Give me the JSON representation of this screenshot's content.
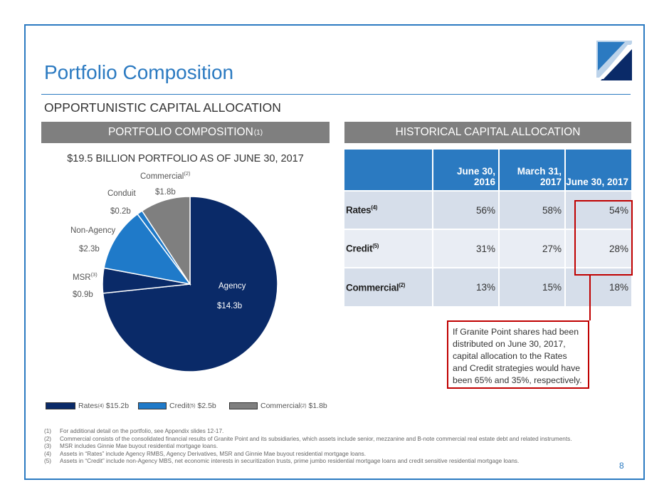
{
  "page": {
    "title": "Portfolio Composition",
    "subtitle": "OPPORTUNISTIC CAPITAL ALLOCATION",
    "page_number": "8"
  },
  "sections": {
    "left": {
      "title": "PORTFOLIO COMPOSITION",
      "sup": "(1)"
    },
    "right": {
      "title": "HISTORICAL CAPITAL ALLOCATION"
    }
  },
  "pie": {
    "heading": "$19.5 BILLION PORTFOLIO AS OF JUNE 30, 2017",
    "slice_labels": [
      {
        "name": "Agency",
        "sup": "",
        "value": "$14.3b"
      },
      {
        "name": "MSR",
        "sup": "(3)",
        "value": "$0.9b"
      },
      {
        "name": "Non-Agency",
        "sup": "",
        "value": "$2.3b"
      },
      {
        "name": "Conduit",
        "sup": "",
        "value": "$0.2b"
      },
      {
        "name": "Commercial",
        "sup": "(2)",
        "value": "$1.8b"
      }
    ],
    "legend": [
      {
        "name": "Rates",
        "sup": "(4)",
        "value": "$15.2b",
        "color": "#0A2A68"
      },
      {
        "name": "Credit",
        "sup": "(5)",
        "value": "$2.5b",
        "color": "#1F7AC9"
      },
      {
        "name": "Commercial",
        "sup": "(2)",
        "value": "$1.8b",
        "color": "#7F7F7F"
      }
    ]
  },
  "chart_data": {
    "type": "pie",
    "slices": [
      {
        "label": "Agency",
        "value": 14.3,
        "color": "#0A2A68"
      },
      {
        "label": "MSR",
        "value": 0.9,
        "color": "#0A2A68"
      },
      {
        "label": "Non-Agency",
        "value": 2.3,
        "color": "#1F7AC9"
      },
      {
        "label": "Conduit",
        "value": 0.2,
        "color": "#1F7AC9"
      },
      {
        "label": "Commercial",
        "value": 1.8,
        "color": "#7F7F7F"
      }
    ],
    "title": "$19.5 BILLION PORTFOLIO AS OF JUNE 30, 2017"
  },
  "table": {
    "columns": [
      "June 30, 2016",
      "March 31, 2017",
      "June 30, 2017"
    ],
    "rows": [
      {
        "label": "Rates",
        "sup": "(4)",
        "values": [
          "56%",
          "58%",
          "54%"
        ]
      },
      {
        "label": "Credit",
        "sup": "(5)",
        "values": [
          "31%",
          "27%",
          "28%"
        ]
      },
      {
        "label": "Commercial",
        "sup": "(2)",
        "values": [
          "13%",
          "15%",
          "18%"
        ]
      }
    ]
  },
  "callout": "If Granite Point shares had been distributed on June 30, 2017, capital allocation to the Rates and Credit strategies would have been 65% and 35%, respectively.",
  "footnotes": [
    {
      "num": "(1)",
      "text": "For additional detail on the portfolio, see Appendix slides 12-17."
    },
    {
      "num": "(2)",
      "text": "Commercial consists of the consolidated financial results of Granite Point and its subsidiaries, which assets include senior, mezzanine and B-note commercial real estate debt and related instruments."
    },
    {
      "num": "(3)",
      "text": "MSR includes Ginnie Mae buyout residential mortgage loans."
    },
    {
      "num": "(4)",
      "text": "Assets in “Rates” include Agency RMBS, Agency Derivatives, MSR and Ginnie Mae buyout residential mortgage loans."
    },
    {
      "num": "(5)",
      "text": "Assets in “Credit” include non-Agency MBS, net economic interests in securitization trusts, prime jumbo residential mortgage loans and credit sensitive residential mortgage loans."
    }
  ]
}
